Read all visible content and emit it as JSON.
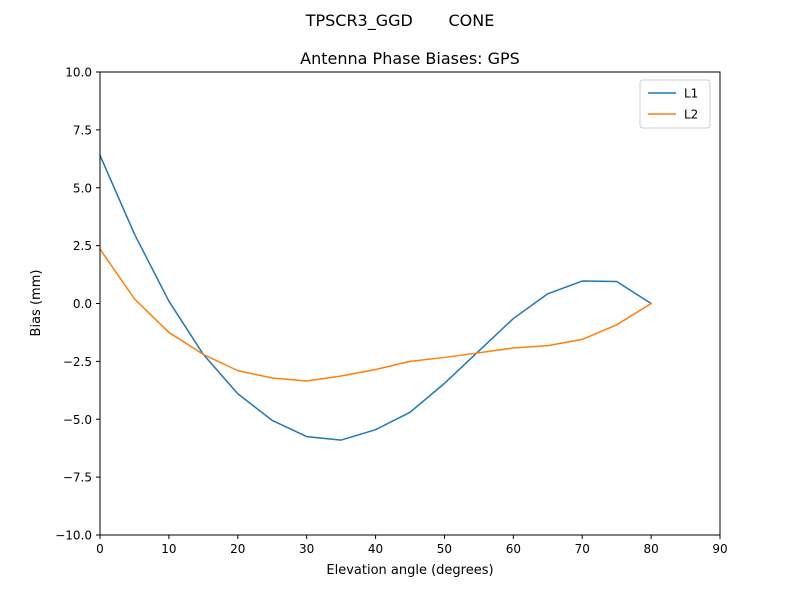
{
  "figure": {
    "suptitle": "TPSCR3_GGD       CONE"
  },
  "chart_data": {
    "type": "line",
    "title": "Antenna Phase Biases: GPS",
    "xlabel": "Elevation angle (degrees)",
    "ylabel": "Bias (mm)",
    "xlim": [
      0,
      90
    ],
    "ylim": [
      -10,
      10
    ],
    "xticks": [
      0,
      10,
      20,
      30,
      40,
      50,
      60,
      70,
      80,
      90
    ],
    "yticks": [
      -10.0,
      -7.5,
      -5.0,
      -2.5,
      0.0,
      2.5,
      5.0,
      7.5,
      10.0
    ],
    "grid": false,
    "legend": "top-right",
    "x": [
      0,
      5,
      10,
      15,
      20,
      25,
      30,
      35,
      40,
      45,
      50,
      55,
      60,
      65,
      70,
      75,
      80
    ],
    "series": [
      {
        "name": "L1",
        "color": "#1f77b4",
        "values": [
          6.4,
          3.0,
          0.1,
          -2.2,
          -3.9,
          -5.05,
          -5.75,
          -5.9,
          -5.45,
          -4.7,
          -3.45,
          -2.05,
          -0.65,
          0.42,
          0.97,
          0.95,
          0.0
        ]
      },
      {
        "name": "L2",
        "color": "#ff7f0e",
        "values": [
          2.35,
          0.2,
          -1.25,
          -2.2,
          -2.9,
          -3.22,
          -3.35,
          -3.13,
          -2.85,
          -2.5,
          -2.33,
          -2.13,
          -1.92,
          -1.82,
          -1.55,
          -0.92,
          0.0
        ]
      }
    ]
  }
}
